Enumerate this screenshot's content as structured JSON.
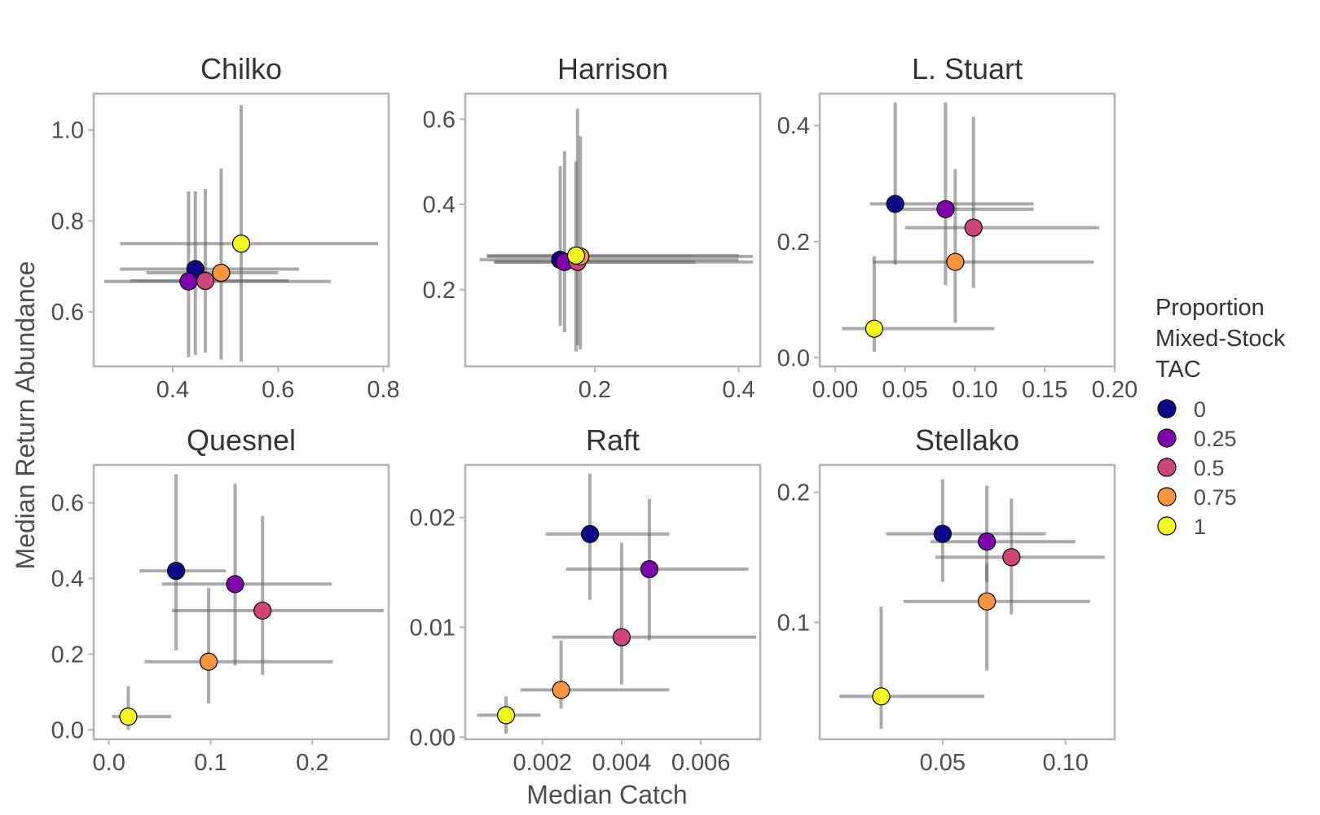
{
  "figure": {
    "xlabel": "Median Catch",
    "ylabel": "Median Return Abundance"
  },
  "legend": {
    "title_lines": [
      "Proportion",
      "Mixed-Stock",
      "TAC"
    ],
    "items": [
      {
        "label": "0",
        "color": "#0d0887"
      },
      {
        "label": "0.25",
        "color": "#7e03a8"
      },
      {
        "label": "0.5",
        "color": "#cc4778"
      },
      {
        "label": "0.75",
        "color": "#f89540"
      },
      {
        "label": "1",
        "color": "#f0f921"
      }
    ]
  },
  "chart_data": [
    {
      "type": "scatter",
      "title": "Chilko",
      "xlim": [
        0.25,
        0.81
      ],
      "ylim": [
        0.48,
        1.08
      ],
      "xticks": [
        0.4,
        0.6,
        0.8
      ],
      "xtick_labels": [
        "0.4",
        "0.6",
        "0.8"
      ],
      "yticks": [
        0.6,
        0.8,
        1.0
      ],
      "ytick_labels": [
        "0.6",
        "0.8",
        "1.0"
      ],
      "points": [
        {
          "tac": "0",
          "x": 0.443,
          "y": 0.694,
          "xlo": 0.3,
          "xhi": 0.64,
          "ylo": 0.505,
          "yhi": 0.865
        },
        {
          "tac": "0.25",
          "x": 0.43,
          "y": 0.667,
          "xlo": 0.27,
          "xhi": 0.7,
          "ylo": 0.5,
          "yhi": 0.865
        },
        {
          "tac": "0.5",
          "x": 0.462,
          "y": 0.668,
          "xlo": 0.32,
          "xhi": 0.62,
          "ylo": 0.51,
          "yhi": 0.87
        },
        {
          "tac": "0.75",
          "x": 0.492,
          "y": 0.686,
          "xlo": 0.35,
          "xhi": 0.6,
          "ylo": 0.495,
          "yhi": 0.915
        },
        {
          "tac": "1",
          "x": 0.53,
          "y": 0.75,
          "xlo": 0.3,
          "xhi": 0.79,
          "ylo": 0.49,
          "yhi": 1.055
        }
      ]
    },
    {
      "type": "scatter",
      "title": "Harrison",
      "xlim": [
        0.02,
        0.43
      ],
      "ylim": [
        0.02,
        0.66
      ],
      "xticks": [
        0.2,
        0.4
      ],
      "xtick_labels": [
        "0.2",
        "0.4"
      ],
      "yticks": [
        0.2,
        0.4,
        0.6
      ],
      "ytick_labels": [
        "0.2",
        "0.4",
        "0.6"
      ],
      "points": [
        {
          "tac": "0",
          "x": 0.152,
          "y": 0.27,
          "xlo": 0.04,
          "xhi": 0.4,
          "ylo": 0.115,
          "yhi": 0.49
        },
        {
          "tac": "0.25",
          "x": 0.158,
          "y": 0.265,
          "xlo": 0.06,
          "xhi": 0.34,
          "ylo": 0.1,
          "yhi": 0.525
        },
        {
          "tac": "0.5",
          "x": 0.176,
          "y": 0.265,
          "xlo": 0.06,
          "xhi": 0.42,
          "ylo": 0.07,
          "yhi": 0.625
        },
        {
          "tac": "0.75",
          "x": 0.18,
          "y": 0.278,
          "xlo": 0.05,
          "xhi": 0.42,
          "ylo": 0.06,
          "yhi": 0.56
        },
        {
          "tac": "1",
          "x": 0.174,
          "y": 0.28,
          "xlo": 0.05,
          "xhi": 0.4,
          "ylo": 0.055,
          "yhi": 0.5
        }
      ]
    },
    {
      "type": "scatter",
      "title": "L. Stuart",
      "xlim": [
        -0.011,
        0.2
      ],
      "ylim": [
        -0.015,
        0.455
      ],
      "xticks": [
        0.0,
        0.05,
        0.1,
        0.15,
        0.2
      ],
      "xtick_labels": [
        "0.00",
        "0.05",
        "0.10",
        "0.15",
        "0.20"
      ],
      "yticks": [
        0.0,
        0.2,
        0.4
      ],
      "ytick_labels": [
        "0.0",
        "0.2",
        "0.4"
      ],
      "points": [
        {
          "tac": "0",
          "x": 0.043,
          "y": 0.265,
          "xlo": 0.025,
          "xhi": 0.142,
          "ylo": 0.16,
          "yhi": 0.44
        },
        {
          "tac": "0.25",
          "x": 0.079,
          "y": 0.256,
          "xlo": 0.045,
          "xhi": 0.142,
          "ylo": 0.125,
          "yhi": 0.44
        },
        {
          "tac": "0.5",
          "x": 0.099,
          "y": 0.224,
          "xlo": 0.05,
          "xhi": 0.189,
          "ylo": 0.12,
          "yhi": 0.415
        },
        {
          "tac": "0.75",
          "x": 0.086,
          "y": 0.165,
          "xlo": 0.027,
          "xhi": 0.185,
          "ylo": 0.06,
          "yhi": 0.325
        },
        {
          "tac": "1",
          "x": 0.028,
          "y": 0.05,
          "xlo": 0.005,
          "xhi": 0.114,
          "ylo": 0.01,
          "yhi": 0.175
        }
      ]
    },
    {
      "type": "scatter",
      "title": "Quesnel",
      "xlim": [
        -0.015,
        0.275
      ],
      "ylim": [
        -0.025,
        0.7
      ],
      "xticks": [
        0.0,
        0.1,
        0.2
      ],
      "xtick_labels": [
        "0.0",
        "0.1",
        "0.2"
      ],
      "yticks": [
        0.0,
        0.2,
        0.4,
        0.6
      ],
      "ytick_labels": [
        "0.0",
        "0.2",
        "0.4",
        "0.6"
      ],
      "points": [
        {
          "tac": "0",
          "x": 0.066,
          "y": 0.42,
          "xlo": 0.03,
          "xhi": 0.115,
          "ylo": 0.21,
          "yhi": 0.675
        },
        {
          "tac": "0.25",
          "x": 0.124,
          "y": 0.385,
          "xlo": 0.052,
          "xhi": 0.219,
          "ylo": 0.17,
          "yhi": 0.65
        },
        {
          "tac": "0.5",
          "x": 0.151,
          "y": 0.315,
          "xlo": 0.062,
          "xhi": 0.27,
          "ylo": 0.145,
          "yhi": 0.565
        },
        {
          "tac": "0.75",
          "x": 0.098,
          "y": 0.18,
          "xlo": 0.035,
          "xhi": 0.22,
          "ylo": 0.07,
          "yhi": 0.375
        },
        {
          "tac": "1",
          "x": 0.019,
          "y": 0.035,
          "xlo": 0.003,
          "xhi": 0.061,
          "ylo": 0.0,
          "yhi": 0.115
        }
      ]
    },
    {
      "type": "scatter",
      "title": "Raft",
      "xlim": [
        5e-05,
        0.0075
      ],
      "ylim": [
        -0.0002,
        0.0248
      ],
      "xticks": [
        0.002,
        0.004,
        0.006
      ],
      "xtick_labels": [
        "0.002",
        "0.004",
        "0.006"
      ],
      "yticks": [
        0.0,
        0.01,
        0.02
      ],
      "ytick_labels": [
        "0.00",
        "0.01",
        "0.02"
      ],
      "points": [
        {
          "tac": "0",
          "x": 0.0032,
          "y": 0.0185,
          "xlo": 0.00208,
          "xhi": 0.0052,
          "ylo": 0.0125,
          "yhi": 0.024
        },
        {
          "tac": "0.25",
          "x": 0.0047,
          "y": 0.0153,
          "xlo": 0.0026,
          "xhi": 0.0072,
          "ylo": 0.0088,
          "yhi": 0.0217
        },
        {
          "tac": "0.5",
          "x": 0.004,
          "y": 0.0091,
          "xlo": 0.00225,
          "xhi": 0.0074,
          "ylo": 0.0048,
          "yhi": 0.0177
        },
        {
          "tac": "0.75",
          "x": 0.00247,
          "y": 0.0043,
          "xlo": 0.00145,
          "xhi": 0.0052,
          "ylo": 0.0026,
          "yhi": 0.0088
        },
        {
          "tac": "1",
          "x": 0.00108,
          "y": 0.002,
          "xlo": 0.00035,
          "xhi": 0.00195,
          "ylo": 0.0003,
          "yhi": 0.0037
        }
      ]
    },
    {
      "type": "scatter",
      "title": "Stellako",
      "xlim": [
        0.0,
        0.12
      ],
      "ylim": [
        0.01,
        0.221
      ],
      "xticks": [
        0.05,
        0.1
      ],
      "xtick_labels": [
        "0.05",
        "0.10"
      ],
      "yticks": [
        0.1,
        0.2
      ],
      "ytick_labels": [
        "0.1",
        "0.2"
      ],
      "points": [
        {
          "tac": "0",
          "x": 0.05,
          "y": 0.168,
          "xlo": 0.027,
          "xhi": 0.092,
          "ylo": 0.131,
          "yhi": 0.21
        },
        {
          "tac": "0.25",
          "x": 0.068,
          "y": 0.162,
          "xlo": 0.045,
          "xhi": 0.104,
          "ylo": 0.131,
          "yhi": 0.205
        },
        {
          "tac": "0.5",
          "x": 0.078,
          "y": 0.15,
          "xlo": 0.047,
          "xhi": 0.116,
          "ylo": 0.106,
          "yhi": 0.195
        },
        {
          "tac": "0.75",
          "x": 0.068,
          "y": 0.116,
          "xlo": 0.034,
          "xhi": 0.11,
          "ylo": 0.063,
          "yhi": 0.145
        },
        {
          "tac": "1",
          "x": 0.025,
          "y": 0.043,
          "xlo": 0.008,
          "xhi": 0.067,
          "ylo": 0.018,
          "yhi": 0.112
        }
      ]
    }
  ]
}
